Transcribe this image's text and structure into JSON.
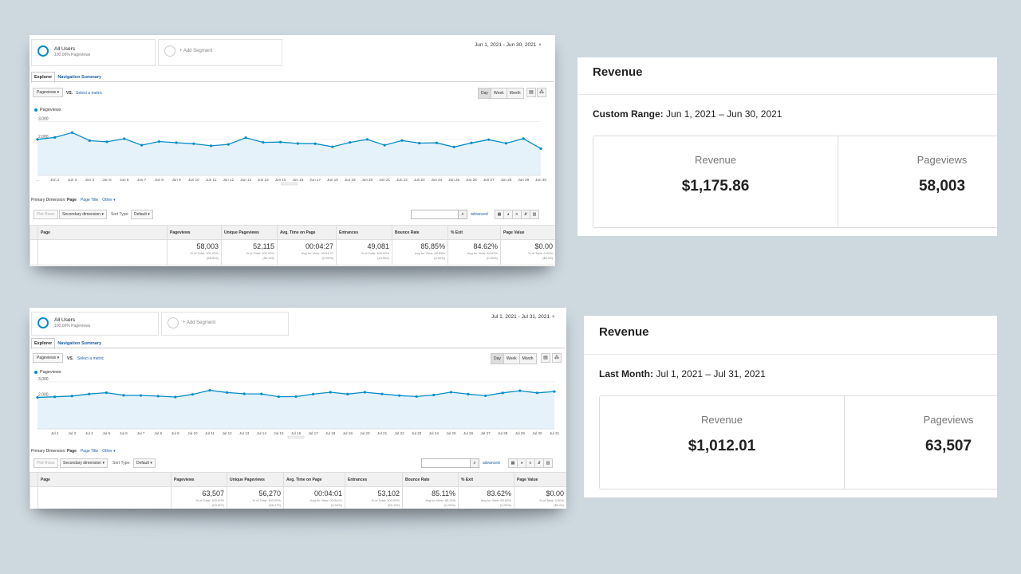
{
  "panels": [
    {
      "segment": {
        "name": "All Users",
        "sub": "100.00% Pageviews",
        "add_label": "+ Add Segment"
      },
      "date_range": "Jun 1, 2021 - Jun 30, 2021",
      "tabs": [
        "Explorer",
        "Navigation Summary"
      ],
      "metric_select": "Pageviews",
      "vs_label": "VS.",
      "select_metric": "Select a metric",
      "granularity": [
        "Day",
        "Week",
        "Month"
      ],
      "legend": "Pageviews",
      "chart_data": {
        "type": "line",
        "series": [
          {
            "name": "Pageviews",
            "values": [
              2008,
              2117,
              2386,
              1938,
              1872,
              2045,
              1683,
              1887,
              1822,
              1764,
              1650,
              1727,
              2099,
              1842,
              1858,
              1778,
              1767,
              1594,
              1839,
              2004,
              1684,
              1944,
              1799,
              1813,
              1583,
              1810,
              1992,
              1791,
              2051,
              1496
            ]
          }
        ],
        "x": [
          "Jun 1",
          "Jun 2",
          "Jun 3",
          "Jun 4",
          "Jun 5",
          "Jun 6",
          "Jun 7",
          "Jun 8",
          "Jun 9",
          "Jun 10",
          "Jun 11",
          "Jun 12",
          "Jun 13",
          "Jun 14",
          "Jun 15",
          "Jun 16",
          "Jun 17",
          "Jun 18",
          "Jun 19",
          "Jun 20",
          "Jun 21",
          "Jun 22",
          "Jun 23",
          "Jun 24",
          "Jun 25",
          "Jun 26",
          "Jun 27",
          "Jun 28",
          "Jun 29",
          "Jun 30"
        ],
        "x_tick_labels": [
          "...",
          "Jun 2",
          "Jun 3",
          "Jun 4",
          "Jun 5",
          "Jun 6",
          "Jun 7",
          "Jun 8",
          "Jun 9",
          "Jun 10",
          "Jun 11",
          "Jun 12",
          "Jun 13",
          "Jun 14",
          "Jun 15",
          "Jun 16",
          "Jun 17",
          "Jun 18",
          "Jun 19",
          "Jun 20",
          "Jun 21",
          "Jun 22",
          "Jun 23",
          "Jun 24",
          "Jun 25",
          "Jun 26",
          "Jun 27",
          "Jun 28",
          "Jun 29",
          "Jun 30"
        ],
        "y_tick_labels": [
          "3,000",
          "2,000",
          "1,000"
        ],
        "y_ticks": [
          3000,
          2000,
          1000
        ],
        "ylim": [
          0,
          3200
        ],
        "grid": true,
        "line_color": "#058dc7",
        "fill_color": "#e6f2fa"
      },
      "primary_dimension": {
        "label": "Primary Dimension:",
        "value": "Page",
        "link1": "Page Title",
        "link2": "Other ▾"
      },
      "controls": {
        "plot_rows": "Plot Rows",
        "secondary": "Secondary dimension ▾",
        "sort_label": "Sort Type:",
        "sort_value": "Default ▾",
        "advanced": "advanced"
      },
      "table": {
        "headers": [
          "Page",
          "Pageviews",
          "Unique Pageviews",
          "Avg. Time on Page",
          "Entrances",
          "Bounce Rate",
          "% Exit",
          "Page Value"
        ],
        "totals": [
          {
            "value": "58,003",
            "sub1": "% of Total: 100.00%",
            "sub2": "(58,003)"
          },
          {
            "value": "52,115",
            "sub1": "% of Total: 100.00%",
            "sub2": "(52,115)"
          },
          {
            "value": "00:04:27",
            "sub1": "Avg for View: 00:04:27",
            "sub2": "(0.00%)"
          },
          {
            "value": "49,081",
            "sub1": "% of Total: 100.00%",
            "sub2": "(49,081)"
          },
          {
            "value": "85.85%",
            "sub1": "Avg for View: 85.85%",
            "sub2": "(0.00%)"
          },
          {
            "value": "84.62%",
            "sub1": "Avg for View: 84.62%",
            "sub2": "(0.00%)"
          },
          {
            "value": "$0.00",
            "sub1": "% of Total: 0.00%",
            "sub2": "($0.00)"
          }
        ]
      }
    },
    {
      "segment": {
        "name": "All Users",
        "sub": "100.00% Pageviews",
        "add_label": "+ Add Segment"
      },
      "date_range": "Jul 1, 2021 - Jul 31, 2021",
      "tabs": [
        "Explorer",
        "Navigation Summary"
      ],
      "metric_select": "Pageviews",
      "vs_label": "VS.",
      "select_metric": "Select a metric",
      "granularity": [
        "Day",
        "Week",
        "Month"
      ],
      "legend": "Pageviews",
      "chart_data": {
        "type": "line",
        "series": [
          {
            "name": "Pageviews",
            "values": [
              2005,
              2045,
              2095,
              2224,
              2307,
              2141,
              2131,
              2086,
              2033,
              2201,
              2456,
              2320,
              2234,
              2228,
              2054,
              2056,
              2213,
              2337,
              2218,
              2335,
              2226,
              2124,
              2061,
              2158,
              2340,
              2215,
              2112,
              2294,
              2431,
              2296,
              2383
            ]
          }
        ],
        "x": [
          "Jul 1",
          "Jul 2",
          "Jul 3",
          "Jul 4",
          "Jul 5",
          "Jul 6",
          "Jul 7",
          "Jul 8",
          "Jul 9",
          "Jul 10",
          "Jul 11",
          "Jul 12",
          "Jul 13",
          "Jul 14",
          "Jul 15",
          "Jul 16",
          "Jul 17",
          "Jul 18",
          "Jul 19",
          "Jul 20",
          "Jul 21",
          "Jul 22",
          "Jul 23",
          "Jul 24",
          "Jul 25",
          "Jul 26",
          "Jul 27",
          "Jul 28",
          "Jul 29",
          "Jul 30",
          "Jul 31"
        ],
        "x_tick_labels": [
          "",
          "Jul 2",
          "Jul 3",
          "Jul 4",
          "Jul 5",
          "Jul 6",
          "Jul 7",
          "Jul 8",
          "Jul 9",
          "Jul 10",
          "Jul 11",
          "Jul 12",
          "Jul 13",
          "Jul 14",
          "Jul 15",
          "Jul 16",
          "Jul 17",
          "Jul 18",
          "Jul 19",
          "Jul 20",
          "Jul 21",
          "Jul 22",
          "Jul 23",
          "Jul 24",
          "Jul 25",
          "Jul 26",
          "Jul 27",
          "Jul 28",
          "Jul 29",
          "Jul 30",
          "Jul 31"
        ],
        "y_tick_labels": [
          "3,000",
          "2,000",
          "1,000"
        ],
        "y_ticks": [
          3000,
          2000,
          1000
        ],
        "ylim": [
          0,
          3200
        ],
        "grid": true,
        "line_color": "#058dc7",
        "fill_color": "#e6f2fa"
      },
      "primary_dimension": {
        "label": "Primary Dimension:",
        "value": "Page",
        "link1": "Page Title",
        "link2": "Other ▾"
      },
      "controls": {
        "plot_rows": "Plot Rows",
        "secondary": "Secondary dimension ▾",
        "sort_label": "Sort Type:",
        "sort_value": "Default ▾",
        "advanced": "advanced"
      },
      "table": {
        "headers": [
          "Page",
          "Pageviews",
          "Unique Pageviews",
          "Avg. Time on Page",
          "Entrances",
          "Bounce Rate",
          "% Exit",
          "Page Value"
        ],
        "totals": [
          {
            "value": "63,507",
            "sub1": "% of Total: 100.00%",
            "sub2": "(63,507)"
          },
          {
            "value": "56,270",
            "sub1": "% of Total: 100.00%",
            "sub2": "(56,270)"
          },
          {
            "value": "00:04:01",
            "sub1": "Avg for View: 00:04:01",
            "sub2": "(0.00%)"
          },
          {
            "value": "53,102",
            "sub1": "% of Total: 100.00%",
            "sub2": "(53,102)"
          },
          {
            "value": "85.11%",
            "sub1": "Avg for View: 85.11%",
            "sub2": "(0.00%)"
          },
          {
            "value": "83.62%",
            "sub1": "Avg for View: 83.62%",
            "sub2": "(0.00%)"
          },
          {
            "value": "$0.00",
            "sub1": "% of Total: 0.00%",
            "sub2": "($0.00)"
          }
        ]
      }
    }
  ],
  "revenue_cards": [
    {
      "title": "Revenue",
      "range_label": "Custom Range:",
      "range_value": "Jun 1, 2021 – Jun 30, 2021",
      "stats": [
        {
          "label": "Revenue",
          "value": "$1,175.86"
        },
        {
          "label": "Pageviews",
          "value": "58,003"
        }
      ]
    },
    {
      "title": "Revenue",
      "range_label": "Last Month:",
      "range_value": "Jul 1, 2021 – Jul 31, 2021",
      "stats": [
        {
          "label": "Revenue",
          "value": "$1,012.01"
        },
        {
          "label": "Pageviews",
          "value": "63,507"
        }
      ]
    }
  ]
}
